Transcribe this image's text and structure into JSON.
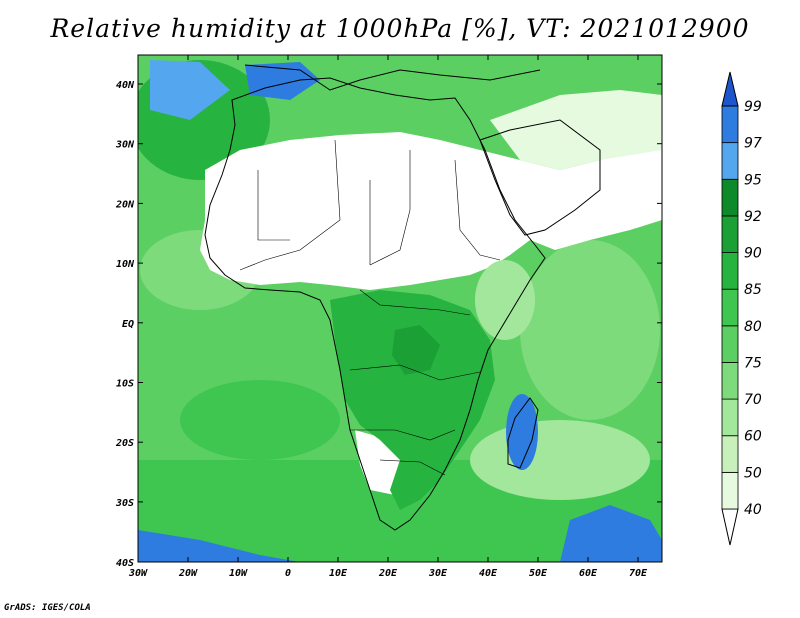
{
  "title": "Relative humidity at 1000hPa [%], VT: 2021012900",
  "credit": "GrADS: IGES/COLA",
  "map": {
    "lon_labels": [
      "30W",
      "20W",
      "10W",
      "0",
      "10E",
      "20E",
      "30E",
      "40E",
      "50E",
      "60E",
      "70E"
    ],
    "lat_labels": [
      "40N",
      "30N",
      "20N",
      "10N",
      "EQ",
      "10S",
      "20S",
      "30S",
      "40S"
    ]
  },
  "colorbar": {
    "levels": [
      "40",
      "50",
      "60",
      "70",
      "75",
      "80",
      "85",
      "90",
      "92",
      "95",
      "97",
      "99"
    ],
    "colors": [
      "#ffffff",
      "#e6fae0",
      "#c8f0bb",
      "#a2e79c",
      "#7edb7c",
      "#5ccf63",
      "#3ec651",
      "#27b33f",
      "#1aa035",
      "#0e8a2a",
      "#54a6ee",
      "#2e7cdf",
      "#1d55cd"
    ]
  }
}
